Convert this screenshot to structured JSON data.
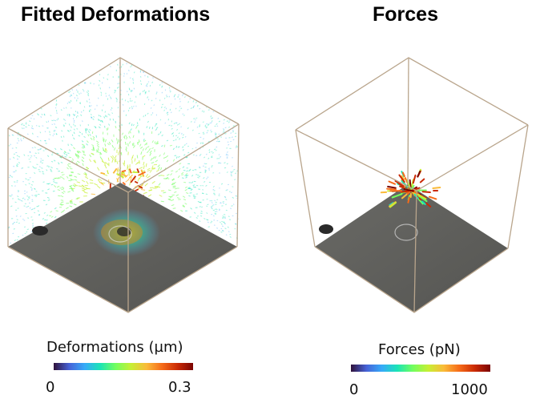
{
  "panels": {
    "left": {
      "title": "Fitted Deformations",
      "colorbar": {
        "label": "Deformations (µm)",
        "min": "0",
        "max": "0.3"
      }
    },
    "right": {
      "title": "Forces",
      "colorbar": {
        "label": "Forces (pN)",
        "min": "0",
        "max": "1000"
      }
    }
  },
  "colors": {
    "colormap": [
      "#30123b",
      "#4662d7",
      "#36aaf9",
      "#1ae4b6",
      "#72fe5e",
      "#c7ef34",
      "#faba39",
      "#f66b19",
      "#ca2a04",
      "#7a0403"
    ],
    "floor": "#5c5c58",
    "box_edge": "#b9a58c"
  }
}
